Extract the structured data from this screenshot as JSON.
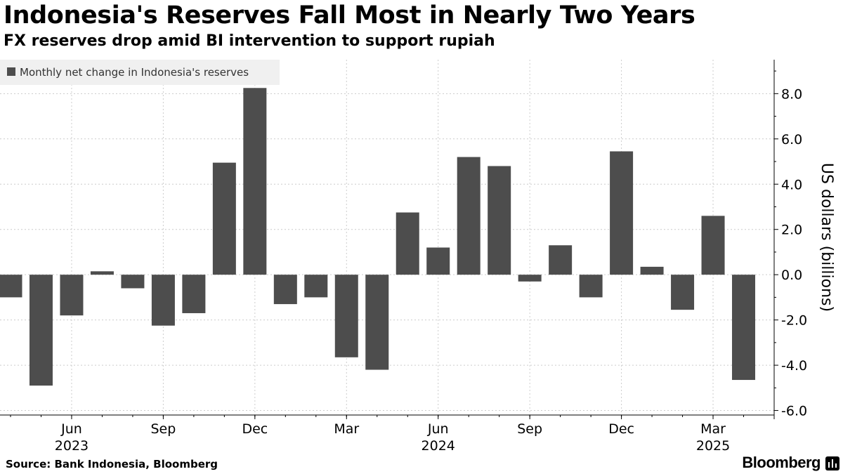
{
  "header": {
    "title": "Indonesia's Reserves Fall Most in Nearly Two Years",
    "subtitle": "FX reserves drop amid BI intervention to support rupiah"
  },
  "footer": {
    "source": "Source: Bank Indonesia, Bloomberg",
    "brand": "Bloomberg"
  },
  "colors": {
    "bar": "#4d4d4d",
    "grid": "#cccccc",
    "legend_bg": "#f0f0f0",
    "axis": "#000000"
  },
  "chart_data": {
    "type": "bar",
    "title": "Indonesia's Reserves Fall Most in Nearly Two Years",
    "subtitle": "FX reserves drop amid BI intervention to support rupiah",
    "legend": "Monthly net change in Indonesia's reserves",
    "legend_position": "top-left",
    "ylabel": "US dollars (billions)",
    "y_axis_side": "right",
    "ylim": [
      -6.2,
      9.5
    ],
    "y_ticks": [
      8.0,
      6.0,
      4.0,
      2.0,
      0.0,
      -2.0,
      -4.0,
      -6.0
    ],
    "y_tick_labels": [
      "8.0",
      "6.0",
      "4.0",
      "2.0",
      "0.0",
      "-2.0",
      "-4.0",
      "-6.0"
    ],
    "grid": true,
    "categories": [
      "Apr 2023",
      "May 2023",
      "Jun 2023",
      "Jul 2023",
      "Aug 2023",
      "Sep 2023",
      "Oct 2023",
      "Nov 2023",
      "Dec 2023",
      "Jan 2024",
      "Feb 2024",
      "Mar 2024",
      "Apr 2024",
      "May 2024",
      "Jun 2024",
      "Jul 2024",
      "Aug 2024",
      "Sep 2024",
      "Oct 2024",
      "Nov 2024",
      "Dec 2024",
      "Jan 2025",
      "Feb 2025",
      "Mar 2025",
      "Apr 2025"
    ],
    "values": [
      -1.0,
      -4.9,
      -1.8,
      0.15,
      -0.6,
      -2.25,
      -1.7,
      4.95,
      8.25,
      -1.3,
      -1.0,
      -3.65,
      -4.2,
      2.75,
      1.2,
      5.2,
      4.8,
      -0.3,
      1.3,
      -1.0,
      5.45,
      0.35,
      -1.55,
      2.6,
      -4.65
    ],
    "x_ticks": [
      {
        "index": 2,
        "label": "Jun",
        "year": "2023"
      },
      {
        "index": 5,
        "label": "Sep",
        "year": ""
      },
      {
        "index": 8,
        "label": "Dec",
        "year": ""
      },
      {
        "index": 11,
        "label": "Mar",
        "year": ""
      },
      {
        "index": 14,
        "label": "Jun",
        "year": "2024"
      },
      {
        "index": 17,
        "label": "Sep",
        "year": ""
      },
      {
        "index": 20,
        "label": "Dec",
        "year": ""
      },
      {
        "index": 23,
        "label": "Mar",
        "year": "2025"
      }
    ]
  }
}
